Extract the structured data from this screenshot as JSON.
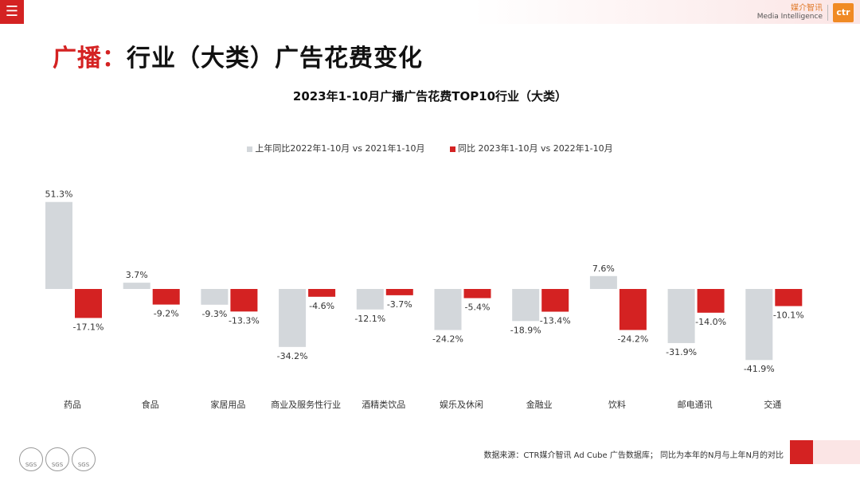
{
  "header": {
    "menu_icon": "menu-icon",
    "menu_glyph": "☰",
    "logo_cn": "媒介智讯",
    "logo_en": "Media Intelligence",
    "logo_mark": "ctr"
  },
  "page_title": {
    "prefix": "广播：",
    "rest": "行业（大类）广告花费变化"
  },
  "colors": {
    "accent": "#d42222",
    "series_prev": "#d3d7db",
    "series_curr": "#d42222"
  },
  "chart_data": {
    "type": "bar",
    "title": "2023年1-10月广播广告花费TOP10行业（大类）",
    "categories": [
      "药品",
      "食品",
      "家居用品",
      "商业及服务性行业",
      "酒精类饮品",
      "娱乐及休闲",
      "金融业",
      "饮料",
      "邮电通讯",
      "交通"
    ],
    "series": [
      {
        "name": "上年同比2022年1-10月  vs  2021年1-10月",
        "values": [
          51.3,
          3.7,
          -9.3,
          -34.2,
          -12.1,
          -24.2,
          -18.9,
          7.6,
          -31.9,
          -41.9
        ]
      },
      {
        "name": "同比 2023年1-10月  vs  2022年1-10月",
        "values": [
          -17.1,
          -9.2,
          -13.3,
          -4.6,
          -3.7,
          -5.4,
          -13.4,
          -24.2,
          -14.0,
          -10.1
        ]
      }
    ],
    "value_labels": [
      [
        "51.3%",
        "3.7%",
        "-9.3%",
        "-34.2%",
        "-12.1%",
        "-24.2%",
        "-18.9%",
        "7.6%",
        "-31.9%",
        "-41.9%"
      ],
      [
        "-17.1%",
        "-9.2%",
        "-13.3%",
        "-4.6%",
        "-3.7%",
        "-5.4%",
        "-13.4%",
        "-24.2%",
        "-14.0%",
        "-10.1%"
      ]
    ],
    "xlabel": "",
    "ylabel": "",
    "ylim": [
      -50,
      55
    ],
    "grid": false,
    "legend_position": "top-center"
  },
  "footer": {
    "source": "数据来源：CTR媒介智讯 Ad Cube 广告数据库；  同比为本年的N月与上年N月的对比",
    "badge_label": "SGS"
  }
}
